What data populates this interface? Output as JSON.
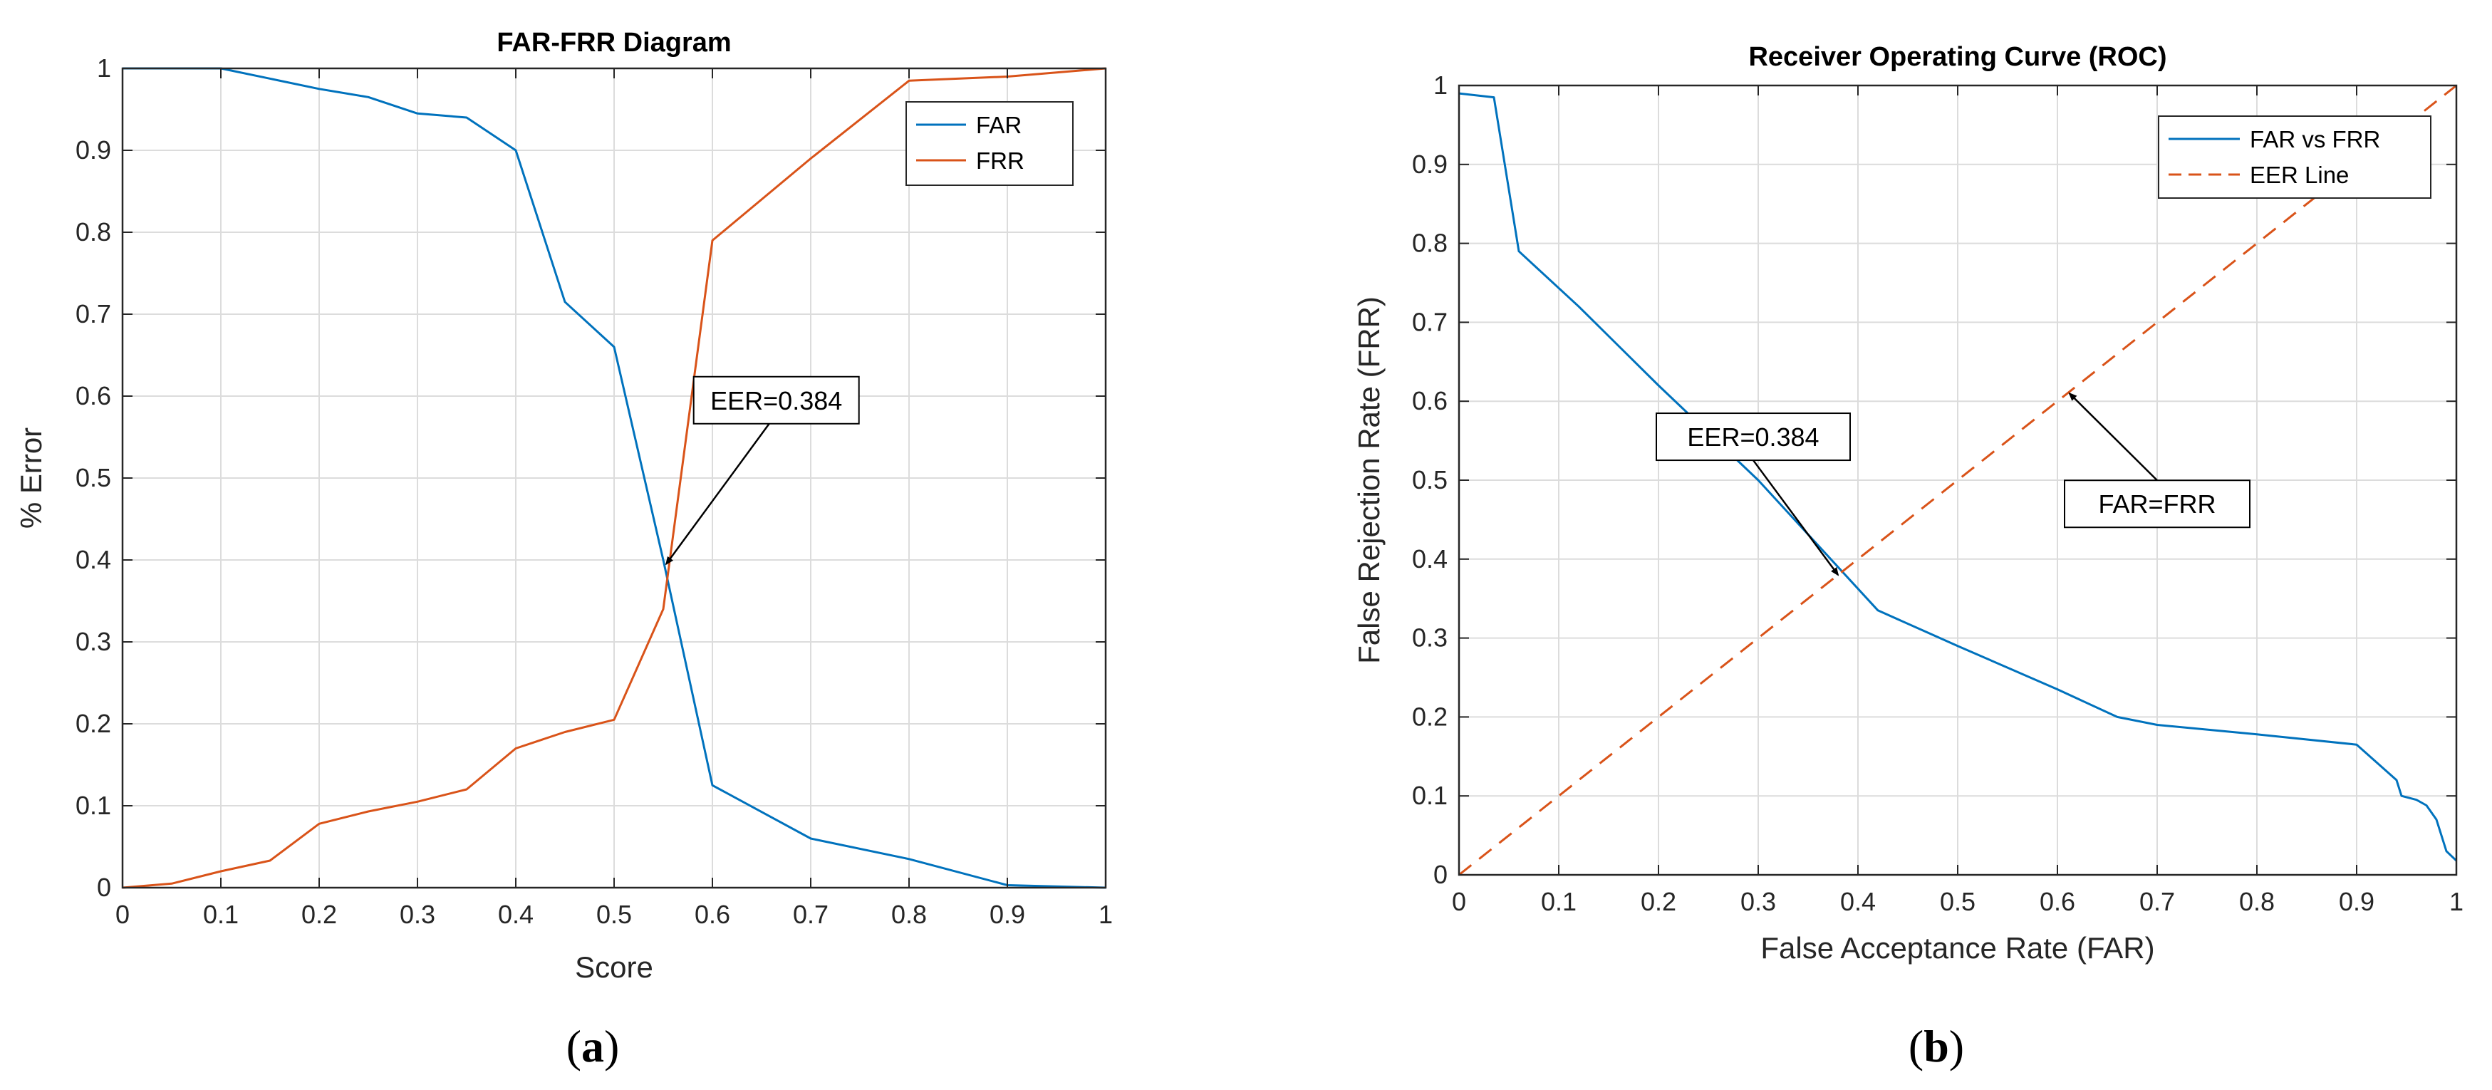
{
  "colors": {
    "far": "#0072BD",
    "frr": "#D95319",
    "grid": "#dcdcdc",
    "axis": "#262626"
  },
  "chart_data": [
    {
      "type": "line",
      "caption": "a",
      "title": "FAR-FRR Diagram",
      "xlabel": "Score",
      "ylabel": "% Error",
      "xlim": [
        0,
        1
      ],
      "ylim": [
        0,
        1
      ],
      "xticks": [
        "0",
        "0.1",
        "0.2",
        "0.3",
        "0.4",
        "0.5",
        "0.6",
        "0.7",
        "0.8",
        "0.9",
        "1"
      ],
      "yticks": [
        "0",
        "0.1",
        "0.2",
        "0.3",
        "0.4",
        "0.5",
        "0.6",
        "0.7",
        "0.8",
        "0.9",
        "1"
      ],
      "grid": true,
      "legend_position": "top-right",
      "series": [
        {
          "name": "FAR",
          "color": "#0072BD",
          "x": [
            0,
            0.1,
            0.2,
            0.25,
            0.3,
            0.35,
            0.4,
            0.45,
            0.5,
            0.55,
            0.6,
            0.7,
            0.8,
            0.9,
            1
          ],
          "y": [
            1,
            1,
            0.975,
            0.965,
            0.945,
            0.94,
            0.9,
            0.715,
            0.66,
            0.4,
            0.125,
            0.06,
            0.035,
            0.003,
            0
          ]
        },
        {
          "name": "FRR",
          "color": "#D95319",
          "x": [
            0,
            0.05,
            0.1,
            0.15,
            0.2,
            0.25,
            0.3,
            0.35,
            0.4,
            0.45,
            0.5,
            0.55,
            0.6,
            0.7,
            0.8,
            0.9,
            1
          ],
          "y": [
            0,
            0.005,
            0.02,
            0.033,
            0.078,
            0.093,
            0.105,
            0.12,
            0.17,
            0.19,
            0.205,
            0.34,
            0.79,
            0.89,
            0.985,
            0.99,
            1
          ]
        }
      ],
      "annotations": [
        {
          "text": "EER=0.384",
          "label_at": [
            0.665,
            0.595
          ],
          "arrow_to": [
            0.553,
            0.395
          ]
        }
      ]
    },
    {
      "type": "line",
      "caption": "b",
      "title": "Receiver Operating Curve (ROC)",
      "xlabel": "False Acceptance Rate (FAR)",
      "ylabel": "False Rejection Rate (FRR)",
      "xlim": [
        0,
        1
      ],
      "ylim": [
        0,
        1
      ],
      "xticks": [
        "0",
        "0.1",
        "0.2",
        "0.3",
        "0.4",
        "0.5",
        "0.6",
        "0.7",
        "0.8",
        "0.9",
        "1"
      ],
      "yticks": [
        "0",
        "0.1",
        "0.2",
        "0.3",
        "0.4",
        "0.5",
        "0.6",
        "0.7",
        "0.8",
        "0.9",
        "1"
      ],
      "grid": true,
      "legend_position": "top-right",
      "series": [
        {
          "name": "FAR vs FRR",
          "color": "#0072BD",
          "style": "solid",
          "x": [
            0,
            0.035,
            0.06,
            0.12,
            0.2,
            0.3,
            0.38,
            0.42,
            0.5,
            0.6,
            0.66,
            0.7,
            0.8,
            0.9,
            0.94,
            0.945,
            0.96,
            0.97,
            0.98,
            0.99,
            1
          ],
          "y": [
            0.99,
            0.985,
            0.79,
            0.72,
            0.62,
            0.5,
            0.39,
            0.335,
            0.29,
            0.235,
            0.2,
            0.19,
            0.178,
            0.165,
            0.12,
            0.1,
            0.095,
            0.088,
            0.07,
            0.03,
            0.018
          ]
        },
        {
          "name": "EER Line",
          "color": "#D95319",
          "style": "dashed",
          "x": [
            0,
            1
          ],
          "y": [
            0,
            1
          ]
        }
      ],
      "annotations": [
        {
          "text": "EER=0.384",
          "label_at": [
            0.295,
            0.555
          ],
          "arrow_to": [
            0.38,
            0.38
          ]
        },
        {
          "text": "FAR=FRR",
          "label_at": [
            0.7,
            0.47
          ],
          "arrow_to": [
            0.612,
            0.61
          ]
        }
      ]
    }
  ]
}
